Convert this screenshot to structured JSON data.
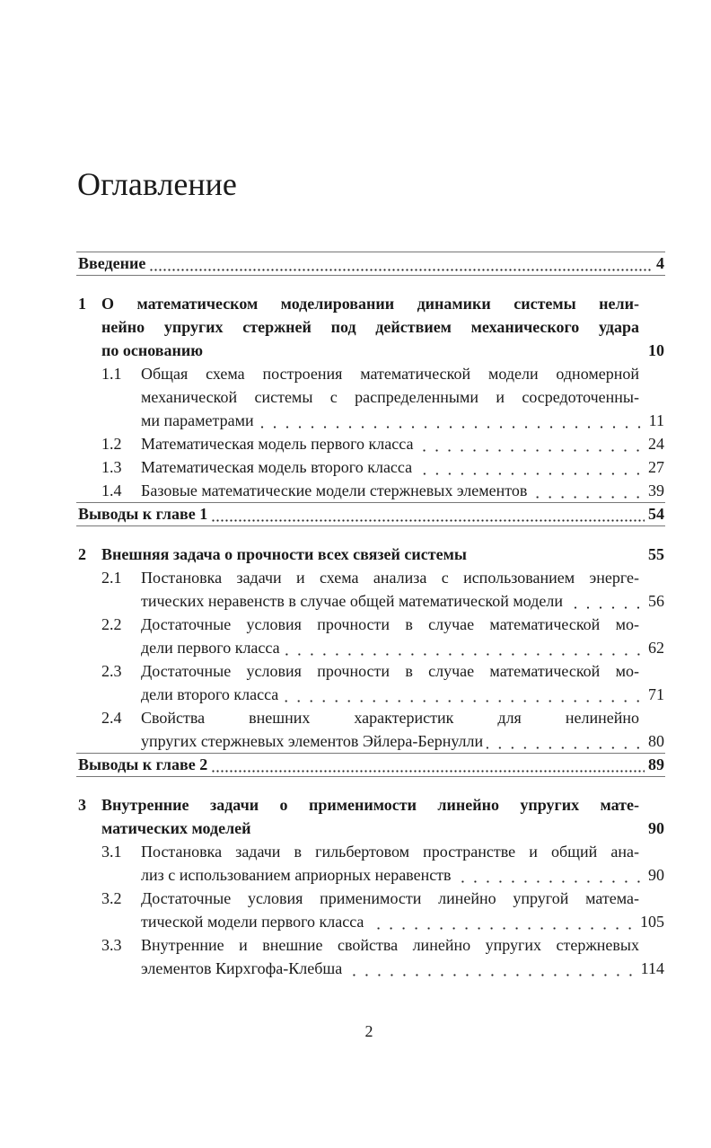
{
  "title": "Оглавление",
  "toc": {
    "intro": {
      "label": "Введение",
      "page": 4
    },
    "chapters": [
      {
        "number": "1",
        "lines": [
          "О математическом моделировании динамики системы нели-",
          "нейно упругих стержней под действием механического удара",
          "по основанию"
        ],
        "page": 10,
        "sections": [
          {
            "number": "1.1",
            "lines": [
              "Общая схема построения математической модели одномерной",
              "механической системы с распределенными и сосредоточенны-",
              "ми параметрами"
            ],
            "page": 11
          },
          {
            "number": "1.2",
            "lines": [
              "Математическая модель первого класса"
            ],
            "page": 24
          },
          {
            "number": "1.3",
            "lines": [
              "Математическая модель второго класса"
            ],
            "page": 27
          },
          {
            "number": "1.4",
            "lines": [
              "Базовые математические модели стержневых элементов"
            ],
            "page": 39
          }
        ],
        "conclusion": {
          "label": "Выводы к главе 1",
          "page": 54
        }
      },
      {
        "number": "2",
        "lines": [
          "Внешняя задача о прочности всех связей системы"
        ],
        "page": 55,
        "sections": [
          {
            "number": "2.1",
            "lines": [
              "Постановка задачи и схема анализа с использованием энерге-",
              "тических неравенств в случае общей математической модели"
            ],
            "page": 56
          },
          {
            "number": "2.2",
            "lines": [
              "Достаточные условия прочности в случае математической мо-",
              "дели первого класса"
            ],
            "page": 62
          },
          {
            "number": "2.3",
            "lines": [
              "Достаточные условия прочности в случае математической мо-",
              "дели второго класса"
            ],
            "page": 71
          },
          {
            "number": "2.4",
            "lines": [
              "Свойства внешних характеристик для нелинейно",
              "упругих стержневых элементов Эйлера-Бернулли"
            ],
            "page": 80
          }
        ],
        "conclusion": {
          "label": "Выводы к главе 2",
          "page": 89
        }
      },
      {
        "number": "3",
        "lines": [
          "Внутренние задачи о применимости линейно упругих мате-",
          "матических моделей"
        ],
        "page": 90,
        "sections": [
          {
            "number": "3.1",
            "lines": [
              "Постановка задачи в гильбертовом пространстве и общий ана-",
              "лиз с использованием априорных неравенств"
            ],
            "page": 90
          },
          {
            "number": "3.2",
            "lines": [
              "Достаточные условия применимости линейно упругой матема-",
              "тической модели первого класса"
            ],
            "page": 105
          },
          {
            "number": "3.3",
            "lines": [
              "Внутренние и внешние свойства линейно упругих стержневых",
              "элементов Кирхгофа-Клебша"
            ],
            "page": 114
          }
        ]
      }
    ]
  },
  "page_number": 2
}
